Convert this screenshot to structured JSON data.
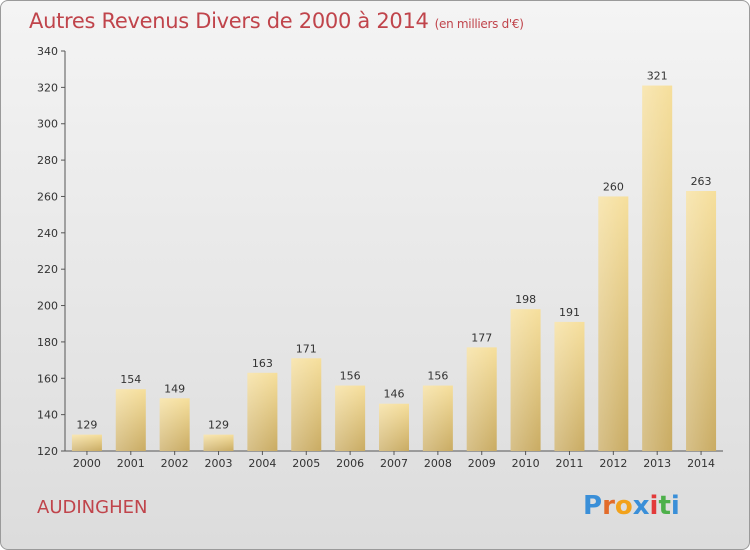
{
  "header": {
    "title": "Autres Revenus Divers de 2000 à 2014",
    "subtitle": "(en milliers d'€)"
  },
  "location": "AUDINGHEN",
  "brand": {
    "letters": [
      "P",
      "r",
      "o",
      "x",
      "i",
      "t",
      "i"
    ],
    "colors": [
      "#3a8fd8",
      "#e26b2a",
      "#f2a21b",
      "#3a8fd8",
      "#e23a3a",
      "#4db04a",
      "#3a8fd8"
    ]
  },
  "chart_data": {
    "type": "bar",
    "title": "Autres Revenus Divers de 2000 à 2014",
    "subtitle": "(en milliers d'€)",
    "xlabel": "",
    "ylabel": "",
    "categories": [
      "2000",
      "2001",
      "2002",
      "2003",
      "2004",
      "2005",
      "2006",
      "2007",
      "2008",
      "2009",
      "2010",
      "2011",
      "2012",
      "2013",
      "2014"
    ],
    "values": [
      129,
      154,
      149,
      129,
      163,
      171,
      156,
      146,
      156,
      177,
      198,
      191,
      260,
      321,
      263
    ],
    "ylim": [
      120,
      340
    ],
    "yticks": [
      120,
      140,
      160,
      180,
      200,
      220,
      240,
      260,
      280,
      300,
      320,
      340
    ],
    "grid": false,
    "bar_color": "#e8cf86"
  }
}
